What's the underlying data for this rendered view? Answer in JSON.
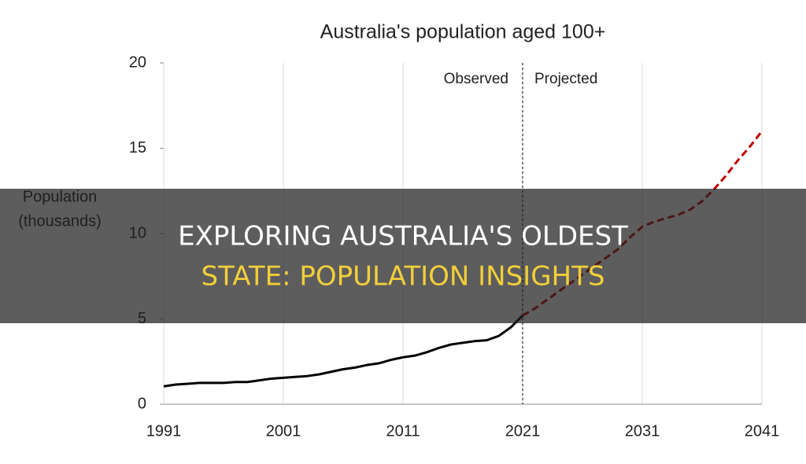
{
  "chart_data": {
    "type": "line",
    "title": "Australia's population aged 100+",
    "ylabel": [
      "Population",
      "(thousands)"
    ],
    "x": [
      1991,
      1992,
      1993,
      1994,
      1995,
      1996,
      1997,
      1998,
      1999,
      2000,
      2001,
      2002,
      2003,
      2004,
      2005,
      2006,
      2007,
      2008,
      2009,
      2010,
      2011,
      2012,
      2013,
      2014,
      2015,
      2016,
      2017,
      2018,
      2019,
      2020,
      2021,
      2022,
      2023,
      2024,
      2025,
      2026,
      2027,
      2028,
      2029,
      2030,
      2031,
      2032,
      2033,
      2034,
      2035,
      2036,
      2037,
      2038,
      2039,
      2040,
      2041
    ],
    "series": [
      {
        "name": "Observed",
        "color": "#000000",
        "dash": false,
        "values": [
          1.05,
          1.15,
          1.2,
          1.25,
          1.25,
          1.25,
          1.3,
          1.3,
          1.4,
          1.5,
          1.55,
          1.6,
          1.65,
          1.75,
          1.9,
          2.05,
          2.15,
          2.3,
          2.4,
          2.6,
          2.75,
          2.85,
          3.05,
          3.3,
          3.5,
          3.6,
          3.7,
          3.75,
          4.0,
          4.5,
          5.2,
          null,
          null,
          null,
          null,
          null,
          null,
          null,
          null,
          null,
          null,
          null,
          null,
          null,
          null,
          null,
          null,
          null,
          null,
          null,
          null
        ]
      },
      {
        "name": "Projected",
        "color": "#c00000",
        "dash": true,
        "values": [
          null,
          null,
          null,
          null,
          null,
          null,
          null,
          null,
          null,
          null,
          null,
          null,
          null,
          null,
          null,
          null,
          null,
          null,
          null,
          null,
          null,
          null,
          null,
          null,
          null,
          null,
          null,
          null,
          null,
          null,
          5.2,
          5.6,
          6.1,
          6.6,
          7.1,
          7.6,
          8.1,
          8.6,
          9.1,
          9.8,
          10.4,
          10.7,
          10.9,
          11.1,
          11.4,
          11.9,
          12.6,
          13.4,
          14.3,
          15.1,
          16
        ]
      }
    ],
    "divider_x": 2021,
    "xlim": [
      1991,
      2041
    ],
    "xticks": [
      1991,
      2001,
      2011,
      2021,
      2031,
      2041
    ],
    "ylim": [
      0,
      20
    ],
    "yticks": [
      0,
      5,
      10,
      15,
      20
    ],
    "grid": "x"
  },
  "overlay": {
    "lines": [
      "EXPLORING AUSTRALIA'S OLDEST",
      "STATE: POPULATION INSIGHTS"
    ],
    "colors": [
      "#ffffff",
      "#f2cf3a"
    ]
  }
}
